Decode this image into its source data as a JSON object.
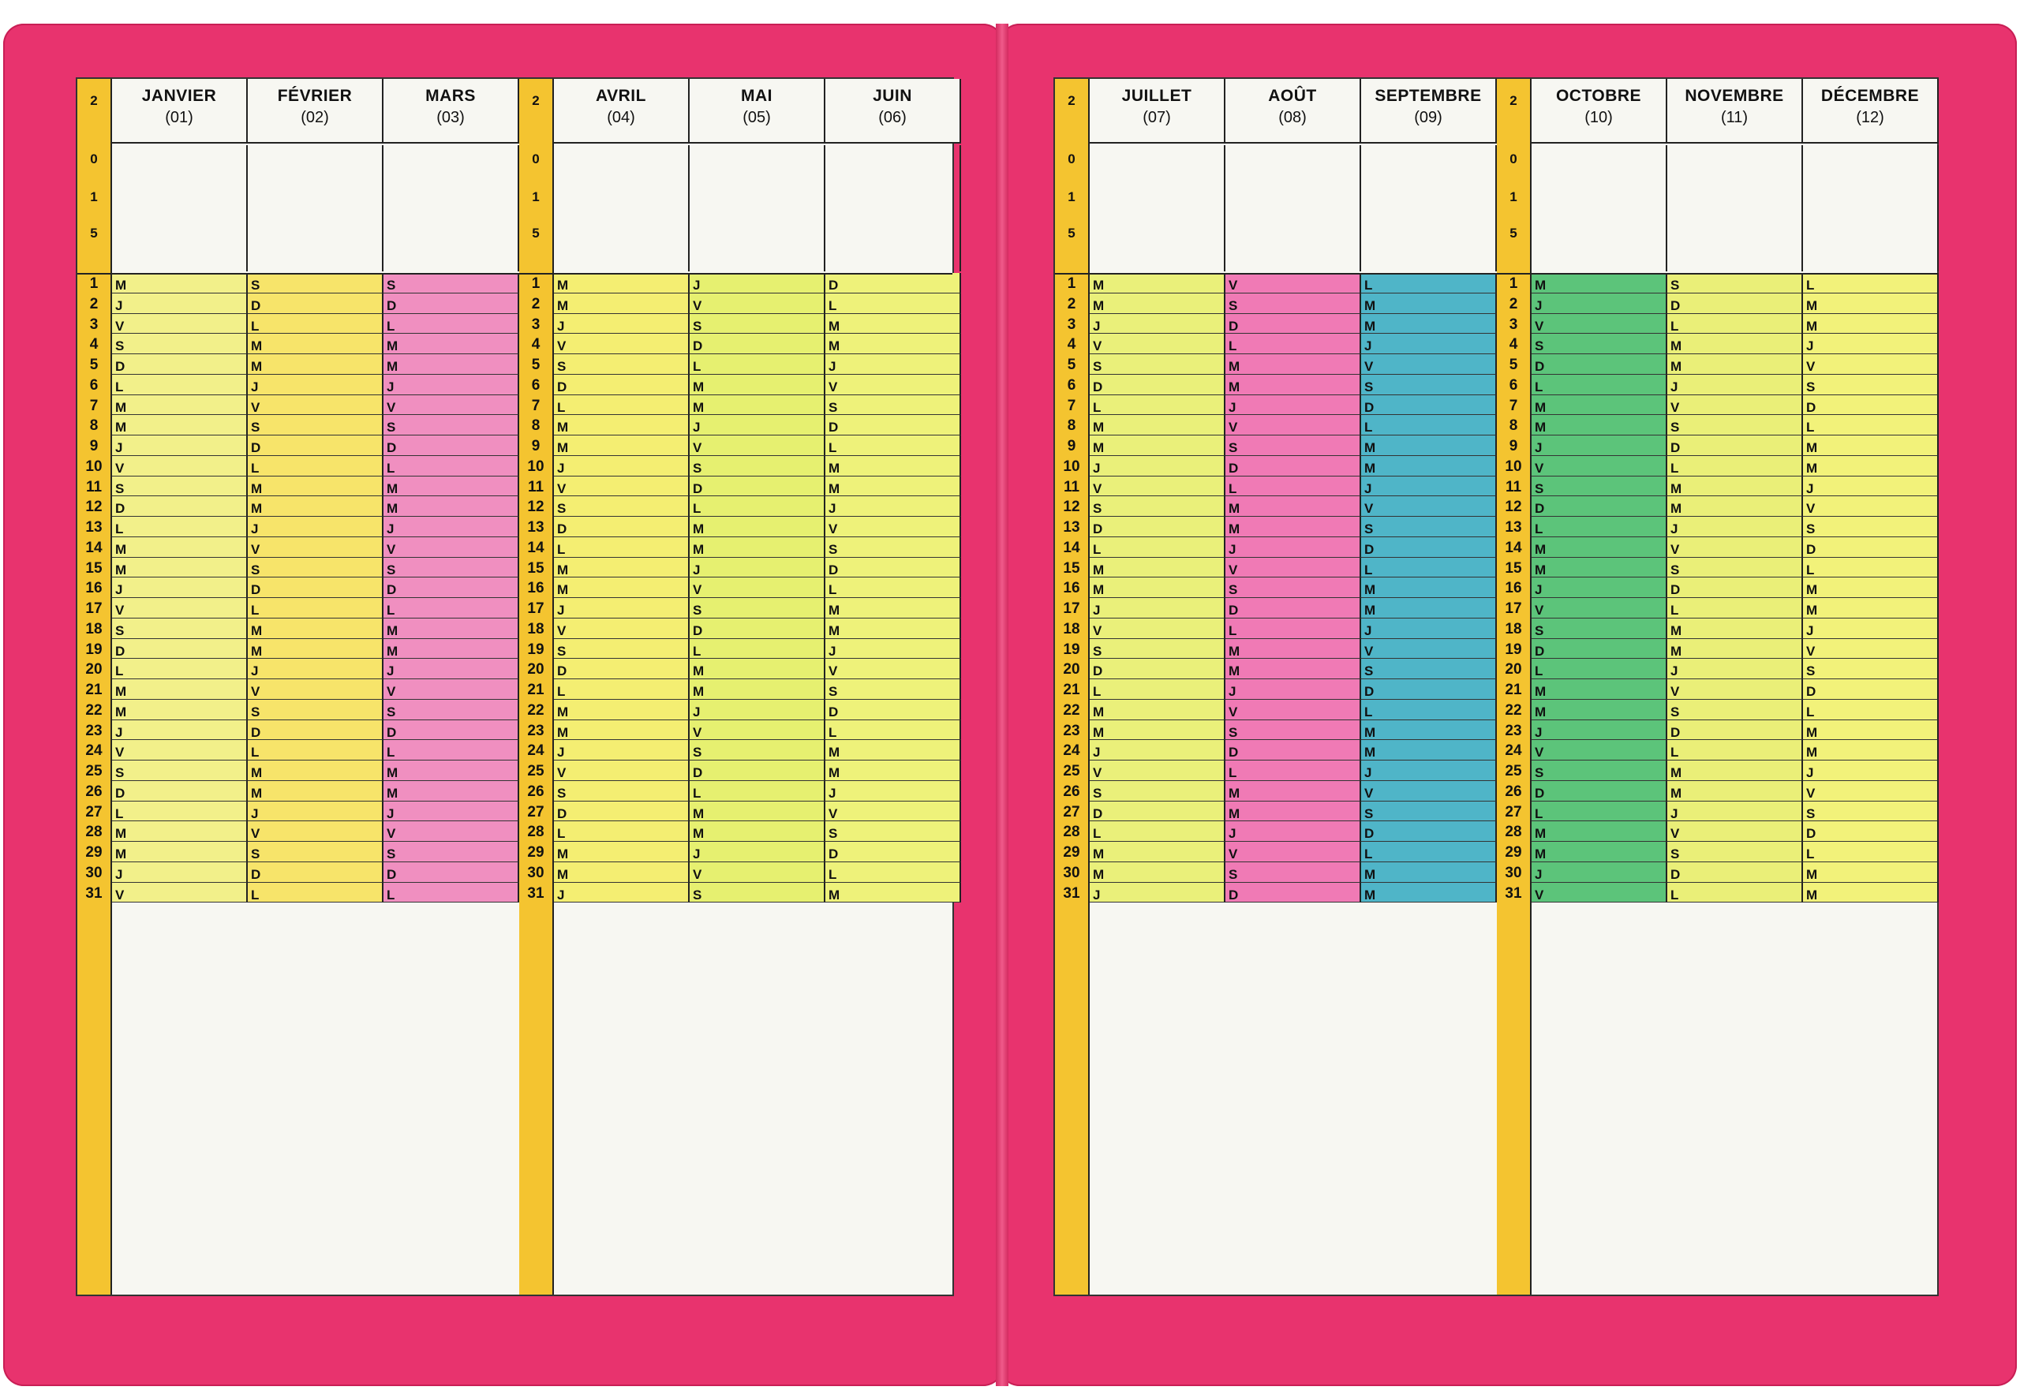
{
  "calendar": {
    "days": [
      1,
      2,
      3,
      4,
      5,
      6,
      7,
      8,
      9,
      10,
      11,
      12,
      13,
      14,
      15,
      16,
      17,
      18,
      19,
      20,
      21,
      22,
      23,
      24,
      25,
      26,
      27,
      28,
      29,
      30,
      31
    ],
    "ruler_top": [
      "2",
      "0",
      "1",
      "5"
    ],
    "months": [
      {
        "name": "Janvier",
        "num": "(01)",
        "start": 2,
        "note": "",
        "color": "#f2f08a"
      },
      {
        "name": "Février",
        "num": "(02)",
        "start": 5,
        "note": "",
        "color": "#f7e46a"
      },
      {
        "name": "Mars",
        "num": "(03)",
        "start": 5,
        "note": "",
        "color": "#f08fc0"
      },
      {
        "name": "Avril",
        "num": "(04)",
        "start": 1,
        "note": "",
        "color": "#f4ee72"
      },
      {
        "name": "Mai",
        "num": "(05)",
        "start": 3,
        "note": "",
        "color": "#e6f070"
      },
      {
        "name": "Juin",
        "num": "(06)",
        "start": 6,
        "note": "",
        "color": "#eef27a"
      },
      {
        "name": "Juillet",
        "num": "(07)",
        "start": 1,
        "note": "",
        "color": "#eaf07a"
      },
      {
        "name": "Août",
        "num": "(08)",
        "start": 4,
        "note": "",
        "color": "#f07ab5"
      },
      {
        "name": "Septembre",
        "num": "(09)",
        "start": 0,
        "note": "",
        "color": "#4fb5c8"
      },
      {
        "name": "Octobre",
        "num": "(10)",
        "start": 2,
        "note": "",
        "color": "#5cc47a"
      },
      {
        "name": "Novembre",
        "num": "(11)",
        "start": 5,
        "note": "",
        "color": "#eaef78"
      },
      {
        "name": "Décembre",
        "num": "(12)",
        "start": 0,
        "note": "",
        "color": "#f2f27a"
      }
    ]
  },
  "weekday_letters": [
    "L",
    "M",
    "M",
    "J",
    "V",
    "S",
    "D"
  ],
  "colors": {
    "cover": "#e8336e",
    "ruler": "#f4c430",
    "paper": "#f7f7f2"
  }
}
